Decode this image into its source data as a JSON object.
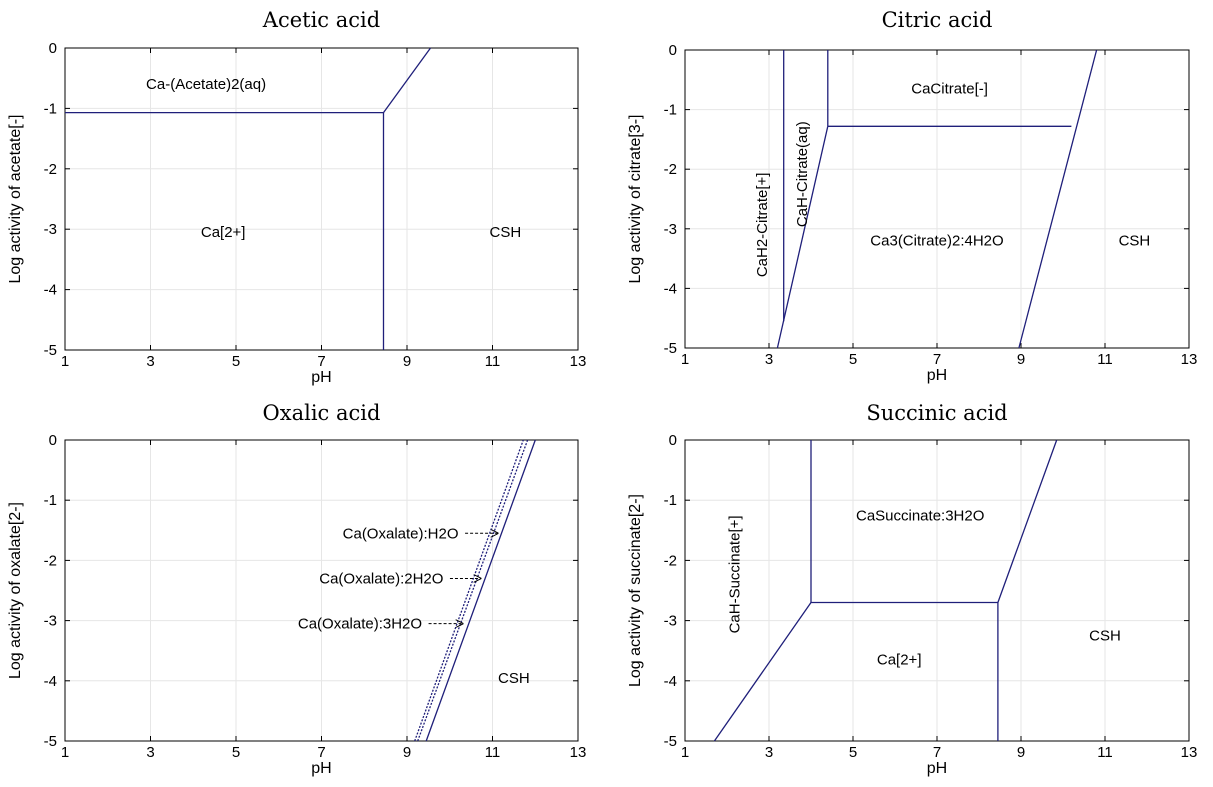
{
  "colors": {
    "boundary": "#1f1f7a",
    "grid": "#e6e6e6"
  },
  "chart_data": [
    {
      "type": "line",
      "title": "Acetic acid",
      "xlabel": "pH",
      "ylabel": "Log activity of acetate[-]",
      "xlim": [
        1,
        13
      ],
      "ylim": [
        -5,
        0
      ],
      "xticks": [
        1,
        3,
        5,
        7,
        9,
        11,
        13
      ],
      "yticks": [
        0,
        -1,
        -2,
        -3,
        -4,
        -5
      ],
      "grid": true,
      "boundaries": [
        {
          "x": [
            1,
            8.45
          ],
          "y": [
            -1.07,
            -1.07
          ]
        },
        {
          "x": [
            8.45,
            8.45
          ],
          "y": [
            -1.07,
            -5
          ]
        },
        {
          "x": [
            8.45,
            9.55
          ],
          "y": [
            -1.07,
            0
          ]
        }
      ],
      "regions": [
        {
          "label": "Ca-(Acetate)2(aq)",
          "x": 4.3,
          "y": -0.6,
          "rotate": false
        },
        {
          "label": "Ca[2+]",
          "x": 4.7,
          "y": -3.05,
          "rotate": false
        },
        {
          "label": "CSH",
          "x": 11.3,
          "y": -3.05,
          "rotate": false
        }
      ]
    },
    {
      "type": "line",
      "title": "Citric acid",
      "xlabel": "pH",
      "ylabel": "Log activity of citrate[3-]",
      "xlim": [
        1,
        13
      ],
      "ylim": [
        -5,
        0
      ],
      "xticks": [
        1,
        3,
        5,
        7,
        9,
        11,
        13
      ],
      "yticks": [
        0,
        -1,
        -2,
        -3,
        -4,
        -5
      ],
      "grid": true,
      "boundaries": [
        {
          "x": [
            3.35,
            3.35
          ],
          "y": [
            0,
            -4.55
          ]
        },
        {
          "x": [
            3.2,
            4.4
          ],
          "y": [
            -5,
            -1.28
          ]
        },
        {
          "x": [
            4.4,
            4.4
          ],
          "y": [
            -1.28,
            0
          ]
        },
        {
          "x": [
            4.4,
            10.2
          ],
          "y": [
            -1.28,
            -1.28
          ]
        },
        {
          "x": [
            8.95,
            10.8
          ],
          "y": [
            -5,
            0
          ]
        }
      ],
      "regions": [
        {
          "label": "CaCitrate[-]",
          "x": 7.3,
          "y": -0.65,
          "rotate": false
        },
        {
          "label": "CaH2-Citrate[+]",
          "x": 2.95,
          "y": -2.85,
          "rotate": true
        },
        {
          "label": "CaH-Citrate(aq)",
          "x": 3.9,
          "y": -2.0,
          "rotate": true
        },
        {
          "label": "Ca3(Citrate)2:4H2O",
          "x": 7.0,
          "y": -3.2,
          "rotate": false
        },
        {
          "label": "CSH",
          "x": 11.7,
          "y": -3.2,
          "rotate": false
        }
      ]
    },
    {
      "type": "line",
      "title": "Oxalic acid",
      "xlabel": "pH",
      "ylabel": "Log activity of oxalate[2-]",
      "xlim": [
        1,
        13
      ],
      "ylim": [
        -5,
        0
      ],
      "xticks": [
        1,
        3,
        5,
        7,
        9,
        11,
        13
      ],
      "yticks": [
        0,
        -1,
        -2,
        -3,
        -4,
        -5
      ],
      "grid": true,
      "boundaries": [
        {
          "x": [
            9.18,
            11.72
          ],
          "y": [
            -5,
            0
          ],
          "dashed": true
        },
        {
          "x": [
            9.25,
            11.82
          ],
          "y": [
            -5,
            0
          ],
          "dashed": true
        },
        {
          "x": [
            9.45,
            12.0
          ],
          "y": [
            -5,
            0
          ],
          "dashed": false
        }
      ],
      "regions": [
        {
          "label": "Ca(Oxalate):H2O",
          "x": 8.85,
          "y": -1.55,
          "rotate": false,
          "arrow_to": [
            11.12,
            -1.55
          ]
        },
        {
          "label": "Ca(Oxalate):2H2O",
          "x": 8.4,
          "y": -2.3,
          "rotate": false,
          "arrow_to": [
            10.72,
            -2.3
          ]
        },
        {
          "label": "Ca(Oxalate):3H2O",
          "x": 7.9,
          "y": -3.05,
          "rotate": false,
          "arrow_to": [
            10.3,
            -3.05
          ]
        },
        {
          "label": "CSH",
          "x": 11.5,
          "y": -3.95,
          "rotate": false
        }
      ]
    },
    {
      "type": "line",
      "title": "Succinic acid",
      "xlabel": "pH",
      "ylabel": "Log activity of succinate[2-]",
      "xlim": [
        1,
        13
      ],
      "ylim": [
        -5,
        0
      ],
      "xticks": [
        1,
        3,
        5,
        7,
        9,
        11,
        13
      ],
      "yticks": [
        0,
        -1,
        -2,
        -3,
        -4,
        -5
      ],
      "grid": true,
      "boundaries": [
        {
          "x": [
            4.0,
            4.0
          ],
          "y": [
            0,
            -2.7
          ]
        },
        {
          "x": [
            1.7,
            4.0
          ],
          "y": [
            -5,
            -2.7
          ]
        },
        {
          "x": [
            4.0,
            8.45
          ],
          "y": [
            -2.7,
            -2.7
          ]
        },
        {
          "x": [
            8.45,
            8.45
          ],
          "y": [
            -2.7,
            -5
          ]
        },
        {
          "x": [
            8.45,
            9.85
          ],
          "y": [
            -2.7,
            0
          ]
        }
      ],
      "regions": [
        {
          "label": "CaSuccinate:3H2O",
          "x": 6.6,
          "y": -1.25,
          "rotate": false
        },
        {
          "label": "CaH-Succinate[+]",
          "x": 2.3,
          "y": -2.15,
          "rotate": true
        },
        {
          "label": "Ca[2+]",
          "x": 6.1,
          "y": -3.65,
          "rotate": false
        },
        {
          "label": "CSH",
          "x": 11.0,
          "y": -3.25,
          "rotate": false
        }
      ]
    }
  ]
}
